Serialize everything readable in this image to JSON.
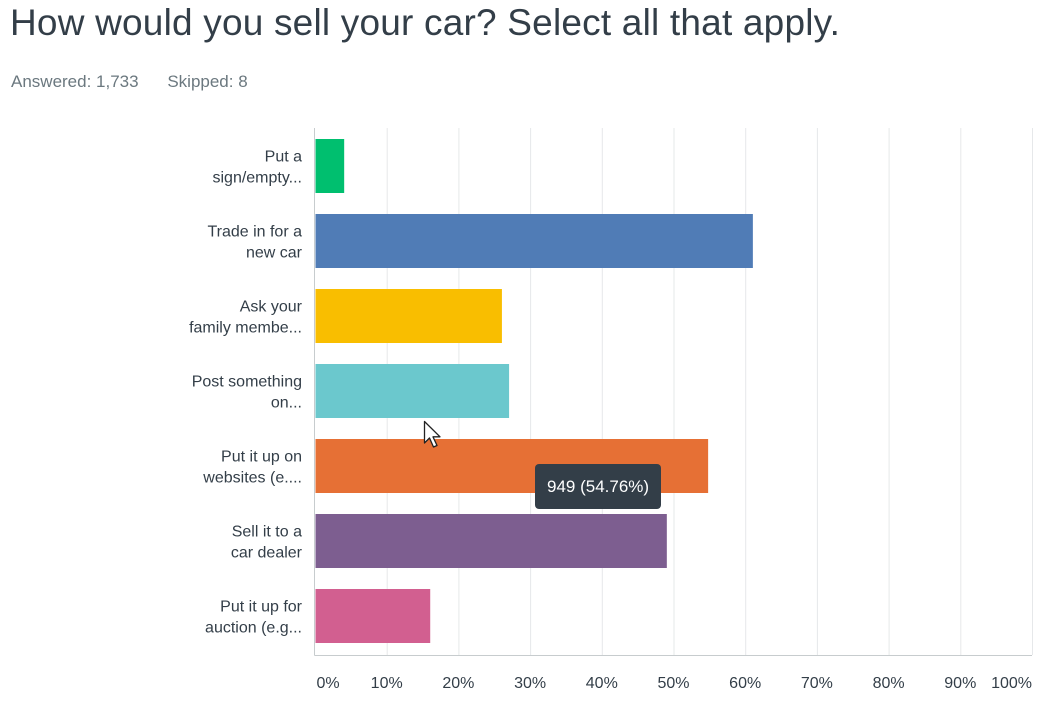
{
  "question": {
    "title": "How would you sell your car? Select all that apply."
  },
  "stats": {
    "answered_label": "Answered: 1,733",
    "skipped_label": "Skipped: 8"
  },
  "tooltip": {
    "text": "949 (54.76%)"
  },
  "colors": {
    "axis": "#c7ccce",
    "grid": "#e6e8ea",
    "text": "#333e48",
    "tooltip_bg": "#333e48"
  },
  "chart_data": {
    "type": "bar",
    "orientation": "horizontal",
    "categories": [
      [
        "Put a",
        "sign/empty..."
      ],
      [
        "Trade in for a",
        "new car"
      ],
      [
        "Ask your",
        "family membe..."
      ],
      [
        "Post something",
        "on..."
      ],
      [
        "Put it up on",
        "websites (e...."
      ],
      [
        "Sell it to a",
        "car dealer"
      ],
      [
        "Put it up for",
        "auction (e.g..."
      ]
    ],
    "values": [
      4,
      61,
      26,
      27,
      54.76,
      49,
      16
    ],
    "colors": [
      "#00bf6f",
      "#507cb6",
      "#f9be00",
      "#6bc8cd",
      "#e67035",
      "#7d5e90",
      "#d25f90"
    ],
    "xlim": [
      0,
      100
    ],
    "xticks": [
      "0%",
      "10%",
      "20%",
      "30%",
      "40%",
      "50%",
      "60%",
      "70%",
      "80%",
      "90%",
      "100%"
    ],
    "grid": true,
    "legend": "none"
  }
}
